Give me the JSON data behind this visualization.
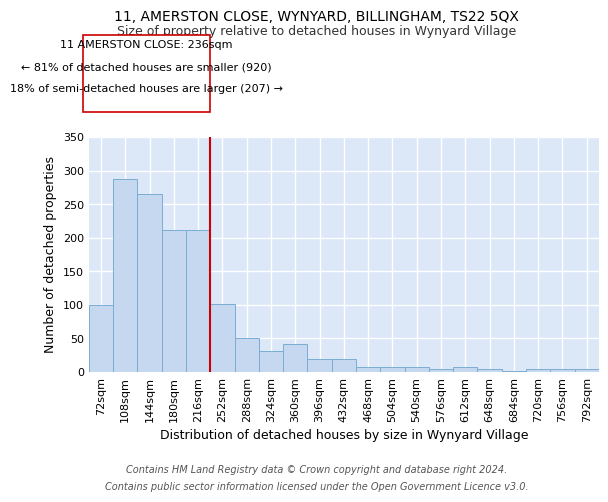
{
  "title1": "11, AMERSTON CLOSE, WYNYARD, BILLINGHAM, TS22 5QX",
  "title2": "Size of property relative to detached houses in Wynyard Village",
  "xlabel": "Distribution of detached houses by size in Wynyard Village",
  "ylabel": "Number of detached properties",
  "footnote1": "Contains HM Land Registry data © Crown copyright and database right 2024.",
  "footnote2": "Contains public sector information licensed under the Open Government Licence v3.0.",
  "categories": [
    "72sqm",
    "108sqm",
    "144sqm",
    "180sqm",
    "216sqm",
    "252sqm",
    "288sqm",
    "324sqm",
    "360sqm",
    "396sqm",
    "432sqm",
    "468sqm",
    "504sqm",
    "540sqm",
    "576sqm",
    "612sqm",
    "648sqm",
    "684sqm",
    "720sqm",
    "756sqm",
    "792sqm"
  ],
  "values": [
    100,
    288,
    265,
    212,
    212,
    102,
    51,
    32,
    41,
    20,
    20,
    7,
    7,
    7,
    5,
    7,
    5,
    2,
    5,
    5,
    4
  ],
  "bar_color": "#c5d8f0",
  "bar_edge_color": "#7aadd4",
  "property_line_color": "#cc0000",
  "property_line_index": 5,
  "annotation_text1": "11 AMERSTON CLOSE: 236sqm",
  "annotation_text2": "← 81% of detached houses are smaller (920)",
  "annotation_text3": "18% of semi-detached houses are larger (207) →",
  "annotation_box_color": "#cc0000",
  "annotation_fill": "#ffffff",
  "ylim": [
    0,
    350
  ],
  "yticks": [
    0,
    50,
    100,
    150,
    200,
    250,
    300,
    350
  ],
  "bg_color": "#dce8f8",
  "grid_color": "#ffffff",
  "title1_fontsize": 10,
  "title2_fontsize": 9,
  "xlabel_fontsize": 9,
  "ylabel_fontsize": 9,
  "tick_fontsize": 8,
  "annotation_fontsize": 8,
  "footnote_fontsize": 7
}
